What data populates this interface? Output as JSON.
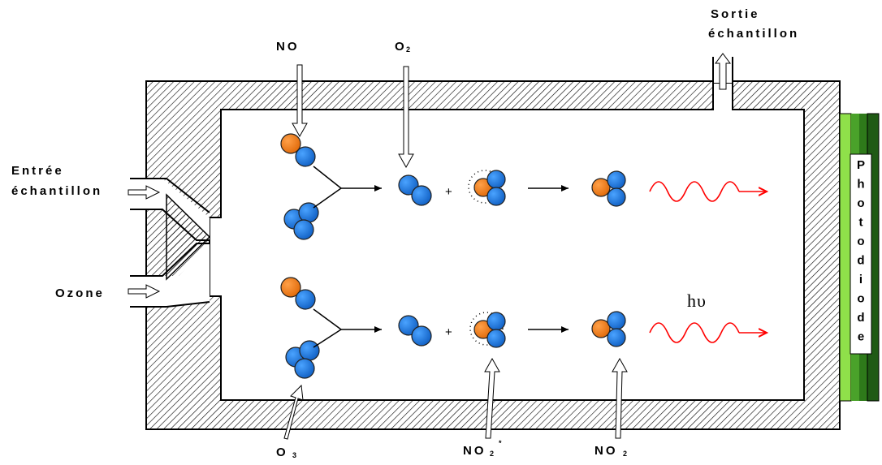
{
  "inlets": {
    "no": {
      "name": "NO"
    },
    "o2": {
      "main": "O",
      "sub": "2"
    },
    "sample_out": {
      "line1": "Sortie",
      "line2": "échantillon"
    },
    "sample_in": {
      "line1": "Entrée",
      "line2": "échantillon"
    },
    "ozone": {
      "name": "Ozone"
    }
  },
  "bottom_labels": {
    "o3": {
      "main": "O",
      "sub": "3"
    },
    "no2_star": {
      "main": "NO",
      "sub": "2",
      "sup": "*"
    },
    "no2": {
      "main": "NO",
      "sub": "2"
    }
  },
  "reaction": {
    "plus": "+",
    "photon": "hυ"
  },
  "detector": {
    "letters": [
      "P",
      "h",
      "o",
      "t",
      "o",
      "d",
      "i",
      "o",
      "d",
      "e"
    ]
  },
  "colors": {
    "oxygen_atom": "#1874d8",
    "nitrogen_atom": "#f07f1c",
    "emission": "#ff0000",
    "detector_green": "#66cc33",
    "detector_dark": "#1f5a14",
    "wall": "#000000"
  }
}
